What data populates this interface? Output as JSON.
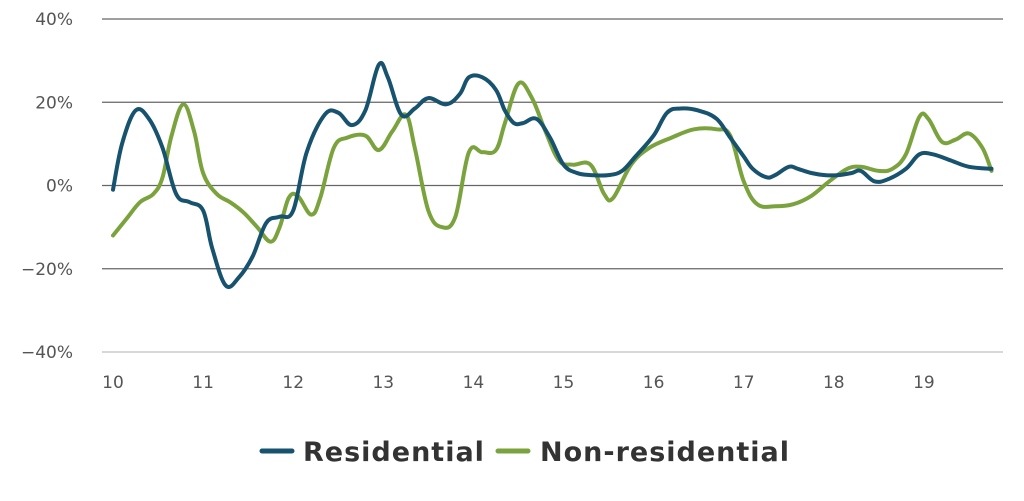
{
  "chart_data": {
    "type": "line",
    "ylim": [
      -40,
      40
    ],
    "xlim": [
      10,
      19.8
    ],
    "y_ticks": [
      40,
      20,
      0,
      -20,
      -40
    ],
    "y_tick_labels": [
      "40%",
      "20%",
      "0%",
      "−20%",
      "−40%"
    ],
    "x_ticks": [
      10,
      11,
      12,
      13,
      14,
      15,
      16,
      17,
      18,
      19
    ],
    "x_tick_labels": [
      "10",
      "11",
      "12",
      "13",
      "14",
      "15",
      "16",
      "17",
      "18",
      "19"
    ],
    "grid": true,
    "legend_position": "bottom-center",
    "series": [
      {
        "name": "Residential",
        "color": "#17526e",
        "points": [
          [
            10.0,
            -1
          ],
          [
            10.1,
            10
          ],
          [
            10.25,
            18
          ],
          [
            10.4,
            16
          ],
          [
            10.55,
            9
          ],
          [
            10.7,
            -2
          ],
          [
            10.85,
            -4
          ],
          [
            11.0,
            -6
          ],
          [
            11.1,
            -15
          ],
          [
            11.25,
            -24
          ],
          [
            11.4,
            -22
          ],
          [
            11.55,
            -17
          ],
          [
            11.7,
            -9
          ],
          [
            11.85,
            -7.5
          ],
          [
            12.0,
            -6
          ],
          [
            12.15,
            8
          ],
          [
            12.35,
            17
          ],
          [
            12.5,
            17.5
          ],
          [
            12.65,
            14.5
          ],
          [
            12.8,
            18
          ],
          [
            12.95,
            29
          ],
          [
            13.05,
            26
          ],
          [
            13.2,
            17
          ],
          [
            13.35,
            18.5
          ],
          [
            13.5,
            21
          ],
          [
            13.7,
            19.5
          ],
          [
            13.85,
            22
          ],
          [
            13.95,
            26
          ],
          [
            14.1,
            26
          ],
          [
            14.25,
            23
          ],
          [
            14.35,
            18
          ],
          [
            14.45,
            15
          ],
          [
            14.55,
            15
          ],
          [
            14.7,
            16
          ],
          [
            14.85,
            11.5
          ],
          [
            15.0,
            5
          ],
          [
            15.15,
            3
          ],
          [
            15.3,
            2.5
          ],
          [
            15.5,
            2.5
          ],
          [
            15.65,
            3.5
          ],
          [
            15.8,
            7
          ],
          [
            16.0,
            12
          ],
          [
            16.15,
            17.5
          ],
          [
            16.3,
            18.5
          ],
          [
            16.5,
            18
          ],
          [
            16.7,
            16
          ],
          [
            16.85,
            11.5
          ],
          [
            17.0,
            7
          ],
          [
            17.1,
            4
          ],
          [
            17.25,
            2
          ],
          [
            17.35,
            2.5
          ],
          [
            17.5,
            4.5
          ],
          [
            17.6,
            4
          ],
          [
            17.75,
            3
          ],
          [
            17.9,
            2.5
          ],
          [
            18.05,
            2.5
          ],
          [
            18.2,
            3
          ],
          [
            18.3,
            3.5
          ],
          [
            18.45,
            1
          ],
          [
            18.6,
            1.5
          ],
          [
            18.8,
            4
          ],
          [
            18.95,
            7.5
          ],
          [
            19.1,
            7.5
          ],
          [
            19.3,
            6
          ],
          [
            19.5,
            4.5
          ],
          [
            19.75,
            4
          ]
        ]
      },
      {
        "name": "Non-residential",
        "color": "#7ba33d",
        "points": [
          [
            10.0,
            -12
          ],
          [
            10.15,
            -8
          ],
          [
            10.3,
            -4
          ],
          [
            10.45,
            -2
          ],
          [
            10.55,
            2
          ],
          [
            10.65,
            12
          ],
          [
            10.78,
            19.5
          ],
          [
            10.9,
            13
          ],
          [
            11.0,
            3
          ],
          [
            11.15,
            -2
          ],
          [
            11.3,
            -4
          ],
          [
            11.45,
            -6.5
          ],
          [
            11.6,
            -10
          ],
          [
            11.75,
            -13.5
          ],
          [
            11.85,
            -10
          ],
          [
            11.95,
            -3
          ],
          [
            12.05,
            -2.5
          ],
          [
            12.2,
            -7
          ],
          [
            12.3,
            -3
          ],
          [
            12.45,
            9
          ],
          [
            12.6,
            11.5
          ],
          [
            12.8,
            12
          ],
          [
            12.95,
            8.5
          ],
          [
            13.1,
            13
          ],
          [
            13.25,
            17
          ],
          [
            13.35,
            9
          ],
          [
            13.5,
            -6
          ],
          [
            13.65,
            -10
          ],
          [
            13.8,
            -7.5
          ],
          [
            13.95,
            8
          ],
          [
            14.1,
            8
          ],
          [
            14.25,
            8.5
          ],
          [
            14.35,
            15
          ],
          [
            14.5,
            24.5
          ],
          [
            14.65,
            21
          ],
          [
            14.8,
            13
          ],
          [
            14.95,
            6
          ],
          [
            15.1,
            5
          ],
          [
            15.3,
            5
          ],
          [
            15.45,
            -2
          ],
          [
            15.55,
            -3
          ],
          [
            15.75,
            5
          ],
          [
            15.95,
            9
          ],
          [
            16.2,
            11.5
          ],
          [
            16.45,
            13.5
          ],
          [
            16.7,
            13.5
          ],
          [
            16.85,
            12
          ],
          [
            17.0,
            1
          ],
          [
            17.15,
            -4.5
          ],
          [
            17.35,
            -5
          ],
          [
            17.55,
            -4.5
          ],
          [
            17.75,
            -2.5
          ],
          [
            17.95,
            1
          ],
          [
            18.15,
            4
          ],
          [
            18.3,
            4.5
          ],
          [
            18.5,
            3.5
          ],
          [
            18.65,
            4
          ],
          [
            18.8,
            7.5
          ],
          [
            18.95,
            16.5
          ],
          [
            19.05,
            16
          ],
          [
            19.2,
            10.5
          ],
          [
            19.35,
            11
          ],
          [
            19.5,
            12.5
          ],
          [
            19.65,
            9
          ],
          [
            19.75,
            3.5
          ]
        ]
      }
    ]
  }
}
